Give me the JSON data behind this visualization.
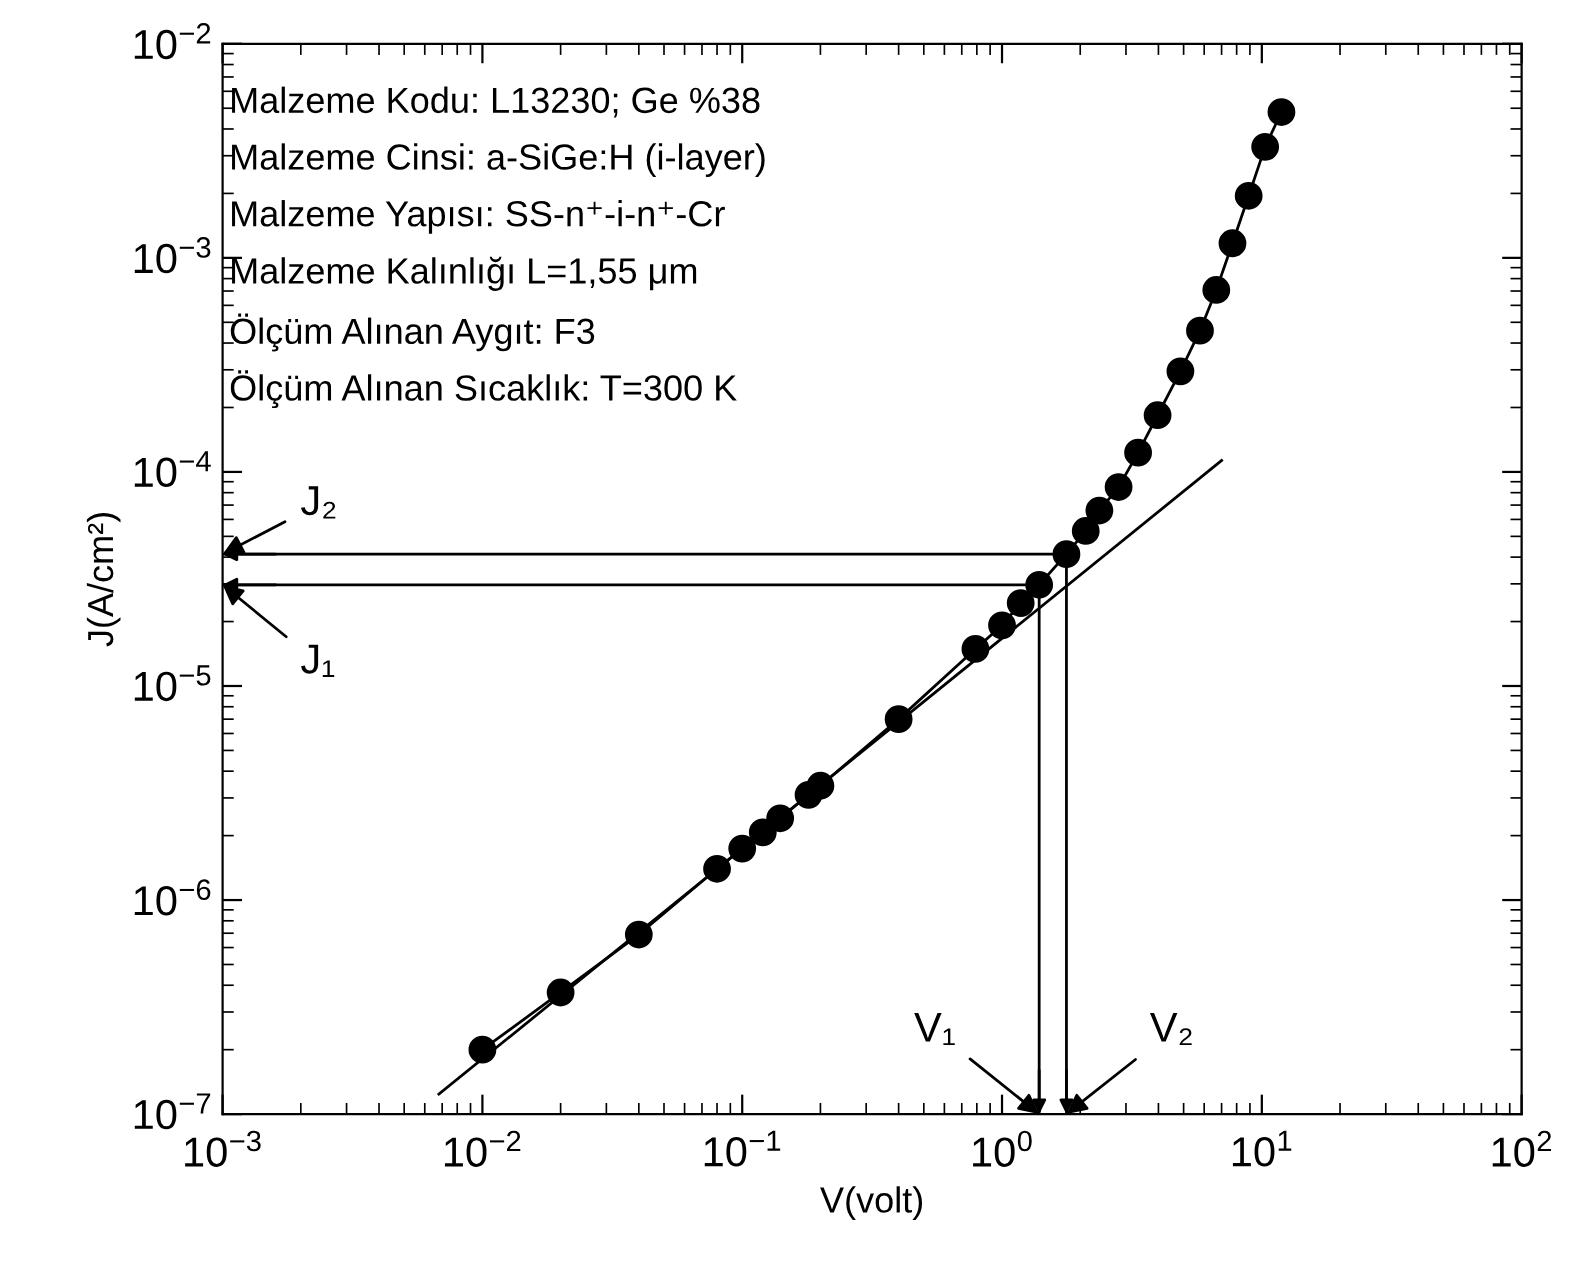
{
  "chart_data": {
    "type": "line",
    "xlabel": "V(volt)",
    "ylabel": "J(A/cm²)",
    "log": "xy",
    "grid": false,
    "marker": "circle",
    "line_style": "solid",
    "xlim": [
      0.001,
      100
    ],
    "ylim": [
      1e-07,
      0.01
    ],
    "xticks": [
      {
        "value": 0.001,
        "label": "10$^{−3}$"
      },
      {
        "value": 0.01,
        "label": "10$^{−2}$"
      },
      {
        "value": 0.1,
        "label": "10$^{−1}$"
      },
      {
        "value": 1,
        "label": "10$^{0}$"
      },
      {
        "value": 10,
        "label": "10$^{1}$"
      },
      {
        "value": 100,
        "label": "10$^{2}$"
      }
    ],
    "yticks": [
      {
        "value": 1e-07,
        "label": "10$^{−7}$"
      },
      {
        "value": 1e-06,
        "label": "10$^{−6}$"
      },
      {
        "value": 1e-05,
        "label": "10$^{−5}$"
      },
      {
        "value": 0.0001,
        "label": "10$^{−4}$"
      },
      {
        "value": 0.001,
        "label": "10$^{−3}$"
      },
      {
        "value": 0.01,
        "label": "10$^{−2}$"
      }
    ],
    "series": [
      {
        "color": "#000000",
        "x": [
          0.01,
          0.02,
          0.04,
          0.08,
          0.1,
          0.12,
          0.14,
          0.18,
          0.2,
          0.4,
          0.79,
          1.0,
          1.18,
          1.39,
          1.77,
          2.1,
          2.37,
          2.81,
          3.34,
          3.97,
          4.86,
          5.78,
          6.68,
          7.71,
          8.9,
          10.3,
          11.9
        ],
        "values": [
          2e-07,
          3.7e-07,
          6.9e-07,
          1.4e-06,
          1.74e-06,
          2.07e-06,
          2.41e-06,
          3.1e-06,
          3.42e-06,
          7e-06,
          1.49e-05,
          1.92e-05,
          2.44e-05,
          2.97e-05,
          4.13e-05,
          5.3e-05,
          6.6e-05,
          8.5e-05,
          0.000123,
          0.000184,
          0.000295,
          0.000457,
          0.000708,
          0.00117,
          0.00195,
          0.0033,
          0.0048
        ]
      },
      {
        "color": "#000000",
        "marker": "none",
        "x": [
          0.0068,
          7.0
        ],
        "values": [
          1.24e-07,
          0.000113
        ]
      }
    ],
    "annotations": [
      "Malzeme Kodu: L13230; Ge %38",
      "Malzeme Cinsi: a-SiGe:H (i-layer)",
      "Malzeme Yapısı: SS-n⁺-i-n⁺-Cr",
      "Malzeme Kalınlığı L=1,55 μm",
      "Ölçüm Alınan Aygıt: F3",
      "Ölçüm Alınan Sıcaklık: T=300 K"
    ],
    "ref_lines": [
      {
        "axis": "y",
        "value": 2.97e-05,
        "label": "J₁"
      },
      {
        "axis": "x",
        "value": 1.39,
        "label": "V₁"
      },
      {
        "axis": "y",
        "value": 4.13e-05,
        "label": "J₂"
      },
      {
        "axis": "x",
        "value": 1.77,
        "label": "V₂"
      }
    ]
  }
}
